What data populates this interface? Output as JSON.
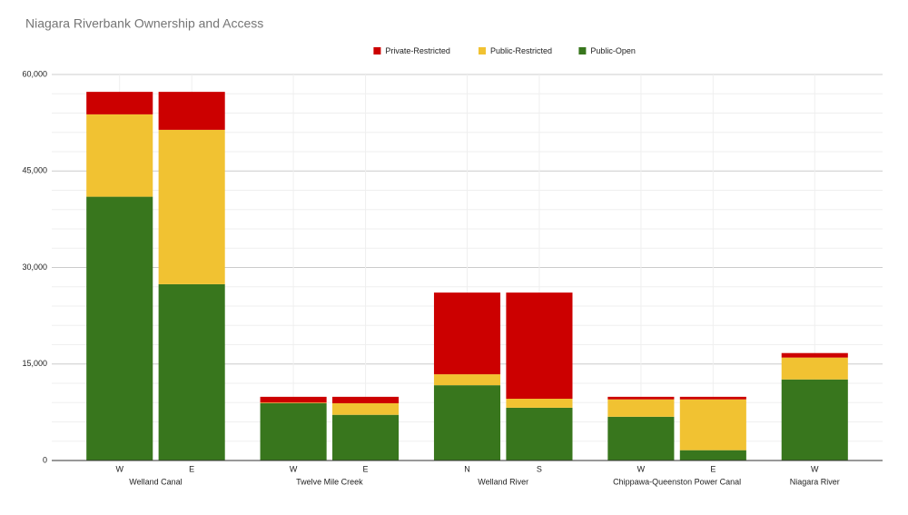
{
  "chart_data": {
    "type": "stacked-bar",
    "title": "Niagara Riverbank Ownership and Access",
    "groups": [
      {
        "name": "Welland Canal",
        "categories": [
          "W",
          "E"
        ]
      },
      {
        "name": "Twelve Mile Creek",
        "categories": [
          "W",
          "E"
        ]
      },
      {
        "name": "Welland River",
        "categories": [
          "N",
          "S"
        ]
      },
      {
        "name": "Chippawa-Queenston Power Canal",
        "categories": [
          "W",
          "E"
        ]
      },
      {
        "name": "Niagara River",
        "categories": [
          "W"
        ]
      }
    ],
    "series": [
      {
        "name": "Private-Restricted",
        "color": "#cc0000",
        "values": [
          3500,
          5900,
          900,
          1000,
          12700,
          16500,
          400,
          400,
          700
        ]
      },
      {
        "name": "Public-Restricted",
        "color": "#f1c232",
        "values": [
          12800,
          24000,
          100,
          1800,
          1700,
          1400,
          2700,
          7900,
          3400
        ]
      },
      {
        "name": "Public-Open",
        "color": "#38761d",
        "values": [
          41000,
          27400,
          8900,
          7100,
          11700,
          8200,
          6800,
          1600,
          12600
        ]
      }
    ],
    "ylim": [
      0,
      60000
    ],
    "yticks": [
      0,
      {
        "value": 15000,
        "label": "15,000"
      },
      {
        "value": 30000,
        "label": "30,000"
      },
      {
        "value": 45000,
        "label": "45,000"
      },
      {
        "value": 60000,
        "label": "60,000"
      }
    ],
    "grid": true,
    "legend": "top"
  }
}
